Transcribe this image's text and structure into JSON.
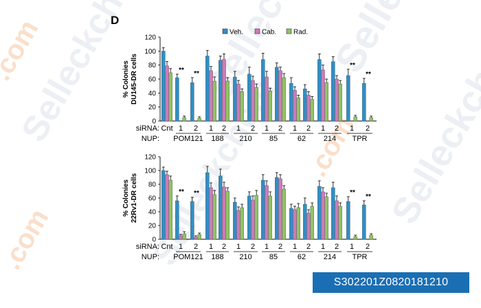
{
  "figure": {
    "panel_label": "D",
    "catalog_number": "S302201Z0820181210",
    "watermark": "Selleckchem",
    "watermark_suffix": ".com"
  },
  "colors": {
    "Veh.": "#2e8fc7",
    "Cab.": "#cf7ab8",
    "Rad.": "#8fc463",
    "catalog_bg": "#1a6fb4"
  },
  "chart_data": [
    {
      "type": "bar",
      "ylabel": [
        "% Colonies",
        "DU145-DR cells"
      ],
      "ylim": [
        0,
        120
      ],
      "yticks": [
        0,
        20,
        40,
        60,
        80,
        100,
        120
      ],
      "legend": {
        "placement": "top-center",
        "entries": [
          "Veh.",
          "Cab.",
          "Rad."
        ]
      },
      "row_labels": [
        "siRNA:",
        "NUP:"
      ],
      "groups": [
        {
          "sirna": "Cnt",
          "nup": ""
        },
        {
          "sirna": "1",
          "nup": "POM121"
        },
        {
          "sirna": "2",
          "nup": ""
        },
        {
          "sirna": "1",
          "nup": "188"
        },
        {
          "sirna": "2",
          "nup": ""
        },
        {
          "sirna": "1",
          "nup": "210"
        },
        {
          "sirna": "2",
          "nup": ""
        },
        {
          "sirna": "1",
          "nup": "85"
        },
        {
          "sirna": "2",
          "nup": ""
        },
        {
          "sirna": "1",
          "nup": "62"
        },
        {
          "sirna": "2",
          "nup": ""
        },
        {
          "sirna": "1",
          "nup": "214"
        },
        {
          "sirna": "2",
          "nup": ""
        },
        {
          "sirna": "1",
          "nup": "TPR"
        },
        {
          "sirna": "2",
          "nup": ""
        }
      ],
      "series": [
        {
          "name": "Veh.",
          "values": [
            100,
            62,
            55,
            93,
            87,
            63,
            67,
            88,
            77,
            54,
            46,
            88,
            85,
            65,
            54
          ],
          "errors": [
            5,
            5,
            7,
            8,
            6,
            8,
            10,
            9,
            6,
            8,
            6,
            8,
            7,
            9,
            7
          ]
        },
        {
          "name": "Cab.",
          "values": [
            79,
            0,
            0,
            72,
            88,
            53,
            58,
            63,
            72,
            44,
            37,
            73,
            60,
            0,
            0
          ],
          "errors": [
            6,
            0,
            0,
            6,
            8,
            5,
            6,
            8,
            5,
            5,
            5,
            7,
            5,
            0,
            0
          ]
        },
        {
          "name": "Rad.",
          "values": [
            69,
            5,
            4,
            57,
            57,
            42,
            48,
            43,
            62,
            33,
            31,
            55,
            53,
            6,
            5
          ],
          "errors": [
            6,
            2,
            2,
            6,
            5,
            4,
            5,
            4,
            6,
            4,
            4,
            5,
            5,
            2,
            2
          ]
        }
      ],
      "annotations": [
        {
          "group": 1,
          "text": "**"
        },
        {
          "group": 2,
          "text": "**"
        },
        {
          "group": 13,
          "text": "**"
        },
        {
          "group": 14,
          "text": "**"
        }
      ]
    },
    {
      "type": "bar",
      "ylabel": [
        "% Colonies",
        "22Rv1-DR cells"
      ],
      "ylim": [
        0,
        120
      ],
      "yticks": [
        0,
        20,
        40,
        60,
        80,
        100,
        120
      ],
      "row_labels": [
        "siRNA:",
        "NUP:"
      ],
      "groups": [
        {
          "sirna": "Cnt",
          "nup": ""
        },
        {
          "sirna": "1",
          "nup": "POM121"
        },
        {
          "sirna": "2",
          "nup": ""
        },
        {
          "sirna": "1",
          "nup": "188"
        },
        {
          "sirna": "2",
          "nup": ""
        },
        {
          "sirna": "1",
          "nup": "210"
        },
        {
          "sirna": "2",
          "nup": ""
        },
        {
          "sirna": "1",
          "nup": "85"
        },
        {
          "sirna": "2",
          "nup": ""
        },
        {
          "sirna": "1",
          "nup": "62"
        },
        {
          "sirna": "2",
          "nup": ""
        },
        {
          "sirna": "1",
          "nup": "214"
        },
        {
          "sirna": "2",
          "nup": ""
        },
        {
          "sirna": "1",
          "nup": "TPR"
        },
        {
          "sirna": "2",
          "nup": ""
        }
      ],
      "series": [
        {
          "name": "Veh.",
          "values": [
            100,
            56,
            55,
            97,
            92,
            54,
            63,
            86,
            90,
            45,
            51,
            77,
            75,
            55,
            50
          ],
          "errors": [
            5,
            7,
            6,
            9,
            10,
            6,
            6,
            8,
            7,
            6,
            9,
            8,
            8,
            7,
            6
          ]
        },
        {
          "name": "Cab.",
          "values": [
            94,
            5,
            3,
            75,
            76,
            42,
            57,
            78,
            88,
            43,
            38,
            69,
            56,
            0,
            0
          ],
          "errors": [
            5,
            2,
            2,
            7,
            7,
            5,
            6,
            7,
            6,
            5,
            5,
            6,
            7,
            0,
            0
          ]
        },
        {
          "name": "Rad.",
          "values": [
            86,
            8,
            7,
            65,
            70,
            46,
            64,
            63,
            73,
            46,
            48,
            62,
            48,
            4,
            6
          ],
          "errors": [
            6,
            3,
            2,
            6,
            5,
            5,
            7,
            6,
            5,
            6,
            5,
            5,
            5,
            2,
            2
          ]
        }
      ],
      "annotations": [
        {
          "group": 1,
          "text": "**"
        },
        {
          "group": 2,
          "text": "**"
        },
        {
          "group": 13,
          "text": "**"
        },
        {
          "group": 14,
          "text": "**"
        }
      ]
    }
  ]
}
